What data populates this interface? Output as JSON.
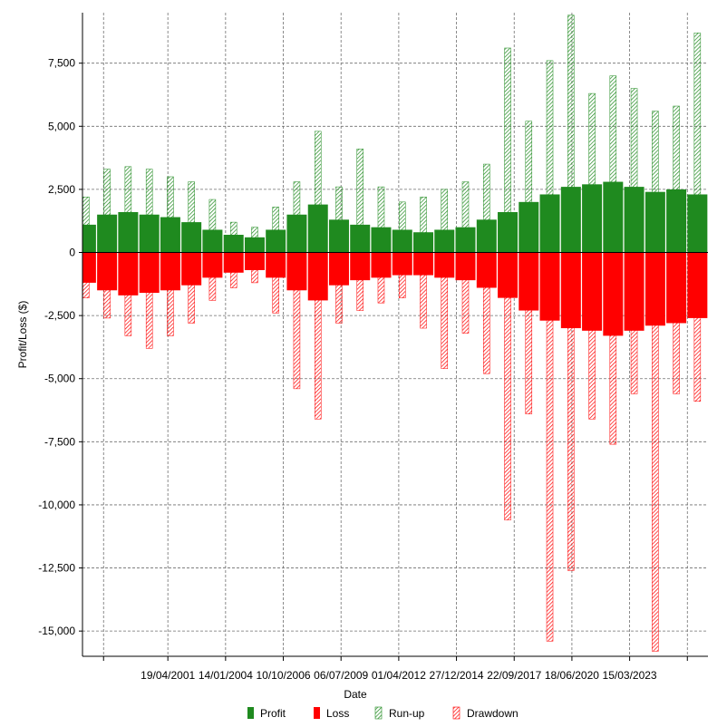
{
  "chart_data": {
    "type": "bar",
    "title": "",
    "xlabel": "Date",
    "ylabel": "Profit/Loss ($)",
    "ylim": [
      -16000,
      9500
    ],
    "y_ticks": [
      7500,
      5000,
      2500,
      0,
      -2500,
      -5000,
      -7500,
      -10000,
      -12500,
      -15000
    ],
    "y_tick_labels": [
      "7,500",
      "5,000",
      "2,500",
      "0",
      "-2,500",
      "-5,000",
      "-7,500",
      "-10,000",
      "-12,500",
      "-15,000"
    ],
    "xlim": [
      "1997-04-01",
      "2026-12-01"
    ],
    "x_ticks": [
      "1998-04-01",
      "2001-04-19",
      "2004-01-14",
      "2006-10-10",
      "2009-07-06",
      "2012-04-01",
      "2014-12-27",
      "2017-09-22",
      "2020-06-18",
      "2023-03-15",
      "2025-12-09"
    ],
    "x_tick_labels": [
      "",
      "19/04/2001",
      "14/01/2004",
      "10/10/2006",
      "06/07/2009",
      "01/04/2012",
      "27/12/2014",
      "22/09/2017",
      "18/06/2020",
      "15/03/2023",
      ""
    ],
    "grid": true,
    "legend_position": "bottom",
    "series": [
      {
        "name": "Profit",
        "color": "#1f8a1f",
        "style": "solid",
        "x": [
          "1997-06",
          "1998-06",
          "1999-06",
          "2000-06",
          "2001-06",
          "2002-06",
          "2003-06",
          "2004-06",
          "2005-06",
          "2006-06",
          "2007-06",
          "2008-06",
          "2009-06",
          "2010-06",
          "2011-06",
          "2012-06",
          "2013-06",
          "2014-06",
          "2015-06",
          "2016-06",
          "2017-06",
          "2018-06",
          "2019-06",
          "2020-06",
          "2021-06",
          "2022-06",
          "2023-06",
          "2024-06",
          "2025-06",
          "2026-06"
        ],
        "values": [
          1100,
          1500,
          1600,
          1500,
          1400,
          1200,
          900,
          700,
          600,
          900,
          1500,
          1900,
          1300,
          1100,
          1000,
          900,
          800,
          900,
          1000,
          1300,
          1600,
          2000,
          2300,
          2600,
          2700,
          2800,
          2600,
          2400,
          2500,
          2300
        ]
      },
      {
        "name": "Loss",
        "color": "#ff0000",
        "style": "solid",
        "x": [
          "1997-06",
          "1998-06",
          "1999-06",
          "2000-06",
          "2001-06",
          "2002-06",
          "2003-06",
          "2004-06",
          "2005-06",
          "2006-06",
          "2007-06",
          "2008-06",
          "2009-06",
          "2010-06",
          "2011-06",
          "2012-06",
          "2013-06",
          "2014-06",
          "2015-06",
          "2016-06",
          "2017-06",
          "2018-06",
          "2019-06",
          "2020-06",
          "2021-06",
          "2022-06",
          "2023-06",
          "2024-06",
          "2025-06",
          "2026-06"
        ],
        "values": [
          -1200,
          -1500,
          -1700,
          -1600,
          -1500,
          -1300,
          -1000,
          -800,
          -700,
          -1000,
          -1500,
          -1900,
          -1300,
          -1100,
          -1000,
          -900,
          -900,
          -1000,
          -1100,
          -1400,
          -1800,
          -2300,
          -2700,
          -3000,
          -3100,
          -3300,
          -3100,
          -2900,
          -2800,
          -2600
        ]
      },
      {
        "name": "Run-up",
        "color": "#1f8a1f",
        "style": "hatched",
        "x": [
          "1997-06",
          "1998-06",
          "1999-06",
          "2000-06",
          "2001-06",
          "2002-06",
          "2003-06",
          "2004-06",
          "2005-06",
          "2006-06",
          "2007-06",
          "2008-06",
          "2009-06",
          "2010-06",
          "2011-06",
          "2012-06",
          "2013-06",
          "2014-06",
          "2015-06",
          "2016-06",
          "2017-06",
          "2018-06",
          "2019-06",
          "2020-06",
          "2021-06",
          "2022-06",
          "2023-06",
          "2024-06",
          "2025-06",
          "2026-06"
        ],
        "values": [
          2200,
          3300,
          3400,
          3300,
          3000,
          2800,
          2100,
          1200,
          1000,
          1800,
          2800,
          4800,
          2600,
          4100,
          2600,
          2000,
          2200,
          2500,
          2800,
          3500,
          8100,
          5200,
          7600,
          9400,
          6300,
          7000,
          6500,
          5600,
          5800,
          8700
        ]
      },
      {
        "name": "Drawdown",
        "color": "#ff0000",
        "style": "hatched",
        "x": [
          "1997-06",
          "1998-06",
          "1999-06",
          "2000-06",
          "2001-06",
          "2002-06",
          "2003-06",
          "2004-06",
          "2005-06",
          "2006-06",
          "2007-06",
          "2008-06",
          "2009-06",
          "2010-06",
          "2011-06",
          "2012-06",
          "2013-06",
          "2014-06",
          "2015-06",
          "2016-06",
          "2017-06",
          "2018-06",
          "2019-06",
          "2020-06",
          "2021-06",
          "2022-06",
          "2023-06",
          "2024-06",
          "2025-06",
          "2026-06"
        ],
        "values": [
          -1800,
          -2600,
          -3300,
          -3800,
          -3300,
          -2800,
          -1900,
          -1400,
          -1200,
          -2400,
          -5400,
          -6600,
          -2800,
          -2300,
          -2000,
          -1800,
          -3000,
          -4600,
          -3200,
          -4800,
          -10600,
          -6400,
          -15400,
          -12600,
          -6600,
          -7600,
          -5600,
          -15800,
          -5600,
          -5900
        ]
      }
    ]
  }
}
